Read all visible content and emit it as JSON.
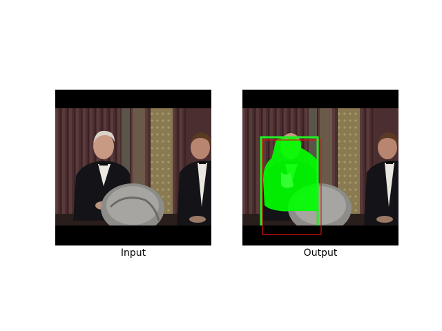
{
  "panels": [
    {
      "caption": "Input"
    },
    {
      "caption": "Output"
    }
  ],
  "overlay": {
    "segmentation_mask_color": "#00ff00",
    "predicted_box_color": "#22ee22",
    "ground_truth_box_color": "#dd1111"
  }
}
